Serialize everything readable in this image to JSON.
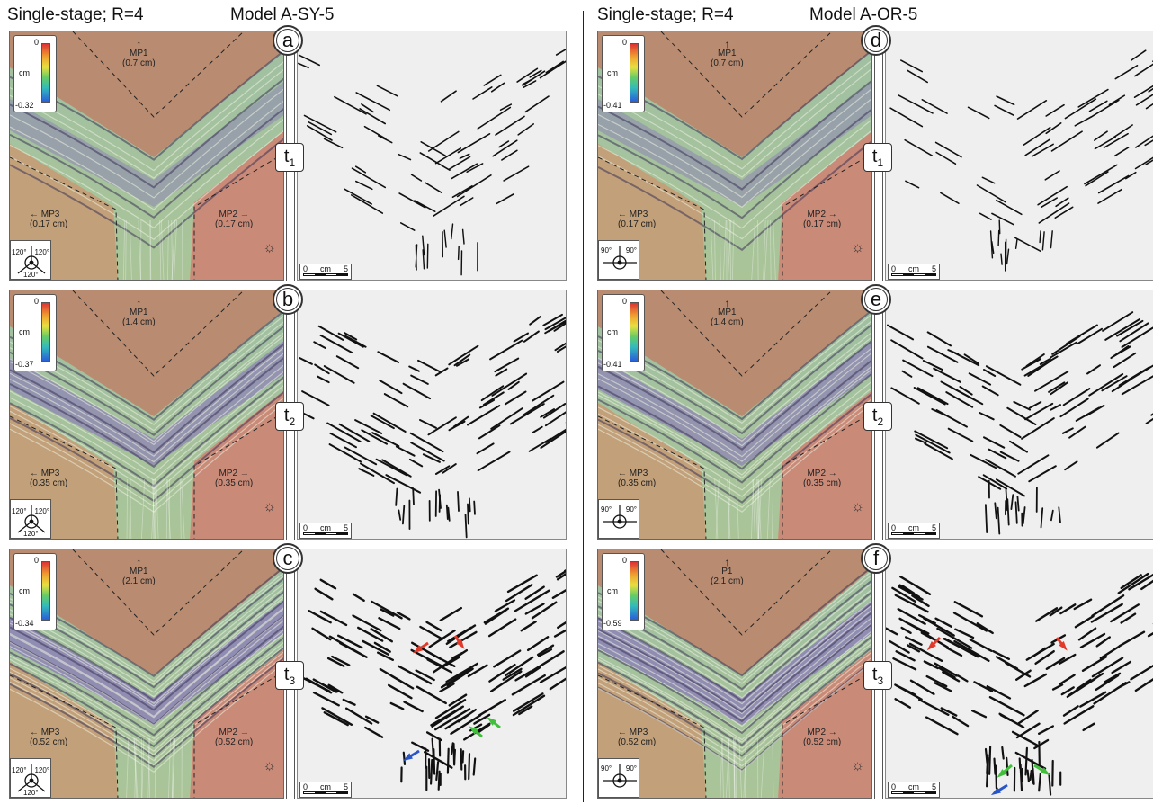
{
  "columns": [
    {
      "setup": "Single-stage; R=4",
      "model": "Model A-SY-5"
    },
    {
      "setup": "Single-stage; R=4",
      "model": "Model A-OR-5"
    }
  ],
  "panels": [
    {
      "letter": "a",
      "t_base": "t",
      "t_sub": "1",
      "leg_max": "0",
      "leg_unit": "cm",
      "leg_min": "-0.32",
      "mp_top": "MP1",
      "mp_top_val": "(0.7 cm)",
      "mp_left": "MP3",
      "mp_left_val": "(0.17 cm)",
      "mp_right": "MP2",
      "mp_right_val": "(0.17  cm)",
      "angles": [
        "120°",
        "120°",
        "120°"
      ],
      "scale_zero": "0",
      "scale_unit": "cm",
      "scale_five": "5",
      "arrows": []
    },
    {
      "letter": "b",
      "t_base": "t",
      "t_sub": "2",
      "leg_max": "0",
      "leg_unit": "cm",
      "leg_min": "-0.37",
      "mp_top": "MP1",
      "mp_top_val": "(1.4 cm)",
      "mp_left": "MP3",
      "mp_left_val": "(0.35 cm)",
      "mp_right": "MP2",
      "mp_right_val": "(0.35 cm)",
      "angles": [
        "120°",
        "120°",
        "120°"
      ],
      "scale_zero": "0",
      "scale_unit": "cm",
      "scale_five": "5",
      "arrows": []
    },
    {
      "letter": "c",
      "t_base": "t",
      "t_sub": "3",
      "leg_max": "0",
      "leg_unit": "cm",
      "leg_min": "-0.34",
      "mp_top": "MP1",
      "mp_top_val": "(2.1 cm)",
      "mp_left": "MP3",
      "mp_left_val": "(0.52 cm)",
      "mp_right": "MP2",
      "mp_right_val": "(0.52 cm)",
      "angles": [
        "120°",
        "120°",
        "120°"
      ],
      "scale_zero": "0",
      "scale_unit": "cm",
      "scale_five": "5",
      "arrows": [
        "red-arrow",
        "red-arrow",
        "green-arrow",
        "green-arrow",
        "blue-arrow"
      ]
    },
    {
      "letter": "d",
      "t_base": "t",
      "t_sub": "1",
      "leg_max": "0",
      "leg_unit": "cm",
      "leg_min": "-0.41",
      "mp_top": "MP1",
      "mp_top_val": "(0.7 cm)",
      "mp_left": "MP3",
      "mp_left_val": "(0.17 cm)",
      "mp_right": "MP2",
      "mp_right_val": "(0.17 cm)",
      "angles": [
        "90°",
        "90°"
      ],
      "scale_zero": "0",
      "scale_unit": "cm",
      "scale_five": "5",
      "arrows": []
    },
    {
      "letter": "e",
      "t_base": "t",
      "t_sub": "2",
      "leg_max": "0",
      "leg_unit": "cm",
      "leg_min": "-0.41",
      "mp_top": "MP1",
      "mp_top_val": "(1.4 cm)",
      "mp_left": "MP3",
      "mp_left_val": "(0.35 cm)",
      "mp_right": "MP2",
      "mp_right_val": "(0.35 cm)",
      "angles": [
        "90°",
        "90°"
      ],
      "scale_zero": "0",
      "scale_unit": "cm",
      "scale_five": "5",
      "arrows": []
    },
    {
      "letter": "f",
      "t_base": "t",
      "t_sub": "3",
      "leg_max": "0",
      "leg_unit": "cm",
      "leg_min": "-0.59",
      "mp_top": "P1",
      "mp_top_val": "(2.1 cm)",
      "mp_left": "MP3",
      "mp_left_val": "(0.52 cm)",
      "mp_right": "MP2",
      "mp_right_val": "(0.52 cm)",
      "angles": [
        "90°",
        "90°"
      ],
      "scale_zero": "0",
      "scale_unit": "cm",
      "scale_five": "5",
      "arrows": [
        "red-arrow",
        "red-arrow",
        "green-arrow",
        "green-arrow",
        "blue-arrow"
      ]
    }
  ],
  "colors": {
    "uplift_top": "#b98c72",
    "uplift_right": "#c98a78",
    "uplift_left": "#c2a07a",
    "trough_green": "#9fc3a4",
    "trough_purple": "#8a7bb8",
    "red_arrow": "#e23a2a",
    "green_arrow": "#3fbf3a",
    "blue_arrow": "#2a55c8"
  }
}
